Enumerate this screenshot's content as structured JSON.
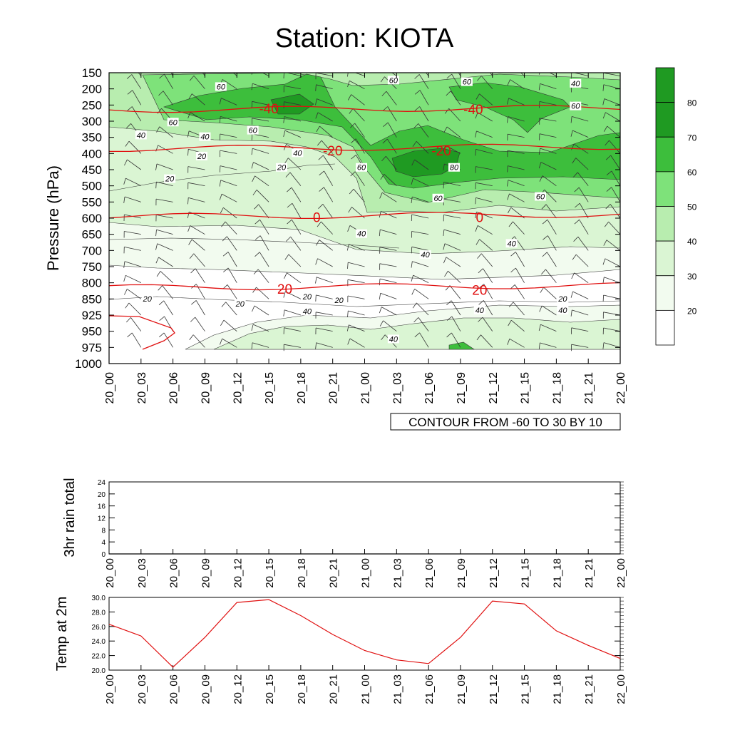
{
  "title": "Station: KIOTA",
  "time_labels": [
    "20_00",
    "20_03",
    "20_06",
    "20_09",
    "20_12",
    "20_15",
    "20_18",
    "20_21",
    "21_00",
    "21_03",
    "21_06",
    "21_09",
    "21_12",
    "21_15",
    "21_18",
    "21_21",
    "22_00"
  ],
  "colors": {
    "text": "#000000",
    "temp_contour": "#e01010",
    "fill_levels": [
      "#ffffff",
      "#f2fbef",
      "#daf5d3",
      "#b8edaf",
      "#7ee27a",
      "#3dbe3c",
      "#1f9a22"
    ]
  },
  "chart_data": [
    {
      "type": "heatmap",
      "name": "pressure-time cross-section",
      "ylabel": "Pressure (hPa)",
      "yticks": [
        150,
        200,
        250,
        300,
        350,
        400,
        450,
        500,
        550,
        600,
        650,
        700,
        750,
        800,
        850,
        925,
        950,
        975,
        1000
      ],
      "ylim": [
        150,
        1000
      ],
      "footer_label": "CONTOUR FROM -60 TO 30 BY 10",
      "colorbar": {
        "levels": [
          20,
          30,
          40,
          50,
          60,
          70,
          80
        ],
        "tick_labels": [
          "20",
          "30",
          "40",
          "50",
          "60",
          "70",
          "80"
        ]
      },
      "temperature_contours": [
        {
          "value": -40,
          "label": "-40",
          "pressure": 265
        },
        {
          "value": -20,
          "label": "-20",
          "pressure": 385
        },
        {
          "value": 0,
          "label": "0",
          "pressure": 595
        },
        {
          "value": 20,
          "label": "20",
          "pressure": 815
        }
      ],
      "temp_contour_labels": [
        {
          "text": "-40",
          "time_index": 5.0,
          "pressure": 260
        },
        {
          "text": "-40",
          "time_index": 11.4,
          "pressure": 262
        },
        {
          "text": "-20",
          "time_index": 7.0,
          "pressure": 390
        },
        {
          "text": "-20",
          "time_index": 10.4,
          "pressure": 390
        },
        {
          "text": "0",
          "time_index": 6.5,
          "pressure": 597
        },
        {
          "text": "0",
          "time_index": 11.6,
          "pressure": 597
        },
        {
          "text": "20",
          "time_index": 5.5,
          "pressure": 818
        },
        {
          "text": "20",
          "time_index": 11.6,
          "pressure": 822
        }
      ],
      "rh_contour_labels": [
        {
          "text": "60",
          "time_index": 3.5,
          "pressure": 195
        },
        {
          "text": "60",
          "time_index": 8.9,
          "pressure": 175
        },
        {
          "text": "60",
          "time_index": 11.2,
          "pressure": 180
        },
        {
          "text": "40",
          "time_index": 14.6,
          "pressure": 185
        },
        {
          "text": "60",
          "time_index": 14.6,
          "pressure": 255
        },
        {
          "text": "60",
          "time_index": 2.0,
          "pressure": 305
        },
        {
          "text": "60",
          "time_index": 4.5,
          "pressure": 330
        },
        {
          "text": "40",
          "time_index": 1.0,
          "pressure": 345
        },
        {
          "text": "40",
          "time_index": 3.0,
          "pressure": 350
        },
        {
          "text": "40",
          "time_index": 5.9,
          "pressure": 400
        },
        {
          "text": "20",
          "time_index": 2.9,
          "pressure": 410
        },
        {
          "text": "20",
          "time_index": 5.4,
          "pressure": 445
        },
        {
          "text": "20",
          "time_index": 1.9,
          "pressure": 480
        },
        {
          "text": "60",
          "time_index": 7.9,
          "pressure": 445
        },
        {
          "text": "80",
          "time_index": 10.8,
          "pressure": 445
        },
        {
          "text": "60",
          "time_index": 10.3,
          "pressure": 540
        },
        {
          "text": "60",
          "time_index": 13.5,
          "pressure": 535
        },
        {
          "text": "40",
          "time_index": 7.9,
          "pressure": 650
        },
        {
          "text": "40",
          "time_index": 12.6,
          "pressure": 680
        },
        {
          "text": "40",
          "time_index": 9.9,
          "pressure": 715
        },
        {
          "text": "20",
          "time_index": 1.2,
          "pressure": 852
        },
        {
          "text": "20",
          "time_index": 6.2,
          "pressure": 845
        },
        {
          "text": "20",
          "time_index": 7.2,
          "pressure": 858
        },
        {
          "text": "20",
          "time_index": 4.1,
          "pressure": 875
        },
        {
          "text": "40",
          "time_index": 6.2,
          "pressure": 910
        },
        {
          "text": "40",
          "time_index": 8.9,
          "pressure": 963
        },
        {
          "text": "40",
          "time_index": 11.6,
          "pressure": 905
        },
        {
          "text": "20",
          "time_index": 14.2,
          "pressure": 852
        },
        {
          "text": "40",
          "time_index": 14.2,
          "pressure": 905
        }
      ]
    },
    {
      "type": "line",
      "name": "3hr rain total",
      "ylabel": "3hr rain total",
      "ylim": [
        0,
        24
      ],
      "yticks": [
        0,
        4,
        8,
        12,
        16,
        20,
        24
      ],
      "ytick_labels": [
        "0",
        "4",
        "8",
        "12",
        "16",
        "20",
        "24"
      ],
      "values": [
        0,
        0,
        0,
        0,
        0,
        0,
        0,
        0,
        0,
        0,
        0,
        0,
        0,
        0,
        0,
        0,
        0
      ]
    },
    {
      "type": "line",
      "name": "Temp at 2m",
      "ylabel": "Temp at 2m",
      "ylim": [
        20,
        30
      ],
      "yticks": [
        20,
        22,
        24,
        26,
        28,
        30
      ],
      "ytick_labels": [
        "20.0",
        "22.0",
        "24.0",
        "26.0",
        "28.0",
        "30.0"
      ],
      "values": [
        26.3,
        24.7,
        20.4,
        24.5,
        29.3,
        29.7,
        27.5,
        24.9,
        22.7,
        21.4,
        20.9,
        24.5,
        29.5,
        29.1,
        25.4,
        23.4,
        21.6
      ]
    }
  ]
}
